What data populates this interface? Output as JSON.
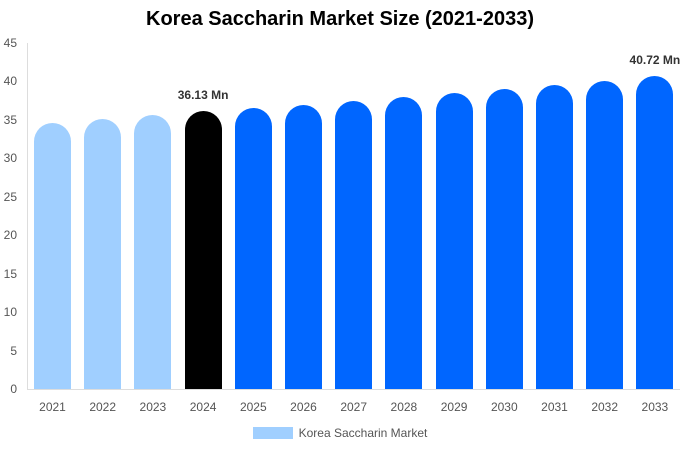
{
  "chart_data": {
    "type": "bar",
    "title": "Korea Saccharin Market Size (2021-2033)",
    "xlabel": "",
    "ylabel": "",
    "ylim": [
      0,
      45
    ],
    "yticks": [
      0,
      5,
      10,
      15,
      20,
      25,
      30,
      35,
      40,
      45
    ],
    "categories": [
      "2021",
      "2022",
      "2023",
      "2024",
      "2025",
      "2026",
      "2027",
      "2028",
      "2029",
      "2030",
      "2031",
      "2032",
      "2033"
    ],
    "series": [
      {
        "name": "Korea Saccharin Market",
        "values": [
          34.6,
          35.1,
          35.6,
          36.13,
          36.5,
          37.0,
          37.5,
          38.0,
          38.5,
          39.0,
          39.5,
          40.1,
          40.72
        ]
      }
    ],
    "bar_colors": [
      "#a0cfff",
      "#a0cfff",
      "#a0cfff",
      "#000000",
      "#0066ff",
      "#0066ff",
      "#0066ff",
      "#0066ff",
      "#0066ff",
      "#0066ff",
      "#0066ff",
      "#0066ff",
      "#0066ff"
    ],
    "annotations": [
      {
        "category": "2024",
        "text": "36.13 Mn"
      },
      {
        "category": "2033",
        "text": "40.72 Mn"
      }
    ],
    "grid": false,
    "legend_position": "bottom"
  },
  "legend": {
    "label": "Korea Saccharin Market",
    "color": "#a0cfff"
  }
}
